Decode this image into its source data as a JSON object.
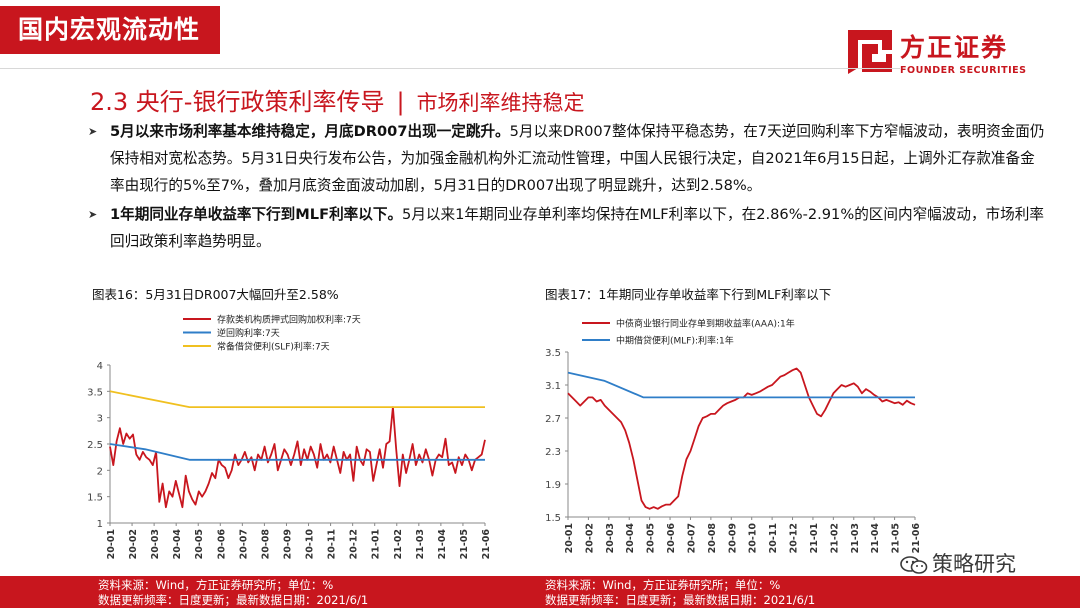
{
  "header": {
    "category_tab": "国内宏观流动性",
    "logo_cn": "方正证券",
    "logo_en": "FOUNDER SECURITIES",
    "brand_color": "#c8161e"
  },
  "section": {
    "title": "2.3 央行-银行政策利率传导",
    "separator": "|",
    "subtitle": "市场利率维持稳定"
  },
  "bullets": [
    {
      "bold": "5月以来市场利率基本维持稳定，月底DR007出现一定跳升。",
      "text": "5月以来DR007整体保持平稳态势，在7天逆回购利率下方窄幅波动，表明资金面仍保持相对宽松态势。5月31日央行发布公告，为加强金融机构外汇流动性管理，中国人民银行决定，自2021年6月15日起，上调外汇存款准备金率由现行的5%至7%，叠加月底资金面波动加剧，5月31日的DR007出现了明显跳升，达到2.58%。"
    },
    {
      "bold": "1年期同业存单收益率下行到MLF利率以下。",
      "text": "5月以来1年期同业存单利率均保持在MLF利率以下，在2.86%-2.91%的区间内窄幅波动，市场利率回归政策利率趋势明显。"
    }
  ],
  "chart_data": [
    {
      "type": "line",
      "caption": "图表16：5月31日DR007大幅回升至2.58%",
      "ylim": [
        1,
        4
      ],
      "yticks": [
        "1",
        "1.5",
        "2",
        "2.5",
        "3",
        "3.5",
        "4"
      ],
      "xticks": [
        "20-01",
        "20-02",
        "20-03",
        "20-04",
        "20-05",
        "20-06",
        "20-07",
        "20-08",
        "20-09",
        "20-10",
        "20-11",
        "20-12",
        "21-01",
        "21-02",
        "21-03",
        "21-04",
        "21-05",
        "21-06"
      ],
      "series": [
        {
          "name": "存款类机构质押式回购加权利率:7天",
          "color": "#c8161e",
          "values": [
            2.45,
            2.1,
            2.55,
            2.8,
            2.5,
            2.7,
            2.6,
            2.68,
            2.3,
            2.2,
            2.35,
            2.25,
            2.2,
            2.1,
            2.35,
            1.4,
            1.75,
            1.3,
            1.6,
            1.5,
            1.8,
            1.55,
            1.3,
            1.9,
            1.6,
            1.45,
            1.35,
            1.6,
            1.5,
            1.6,
            1.75,
            1.95,
            1.85,
            2.2,
            2.1,
            2.05,
            1.85,
            2.0,
            2.3,
            2.1,
            2.2,
            2.35,
            2.15,
            2.25,
            2.0,
            2.3,
            2.2,
            2.45,
            2.15,
            2.3,
            2.5,
            2.0,
            2.2,
            2.4,
            2.3,
            2.1,
            2.3,
            2.55,
            2.1,
            2.4,
            2.2,
            2.45,
            2.3,
            2.05,
            2.5,
            2.2,
            2.3,
            2.15,
            2.45,
            2.2,
            1.95,
            2.35,
            2.2,
            2.3,
            1.8,
            2.45,
            2.2,
            2.1,
            2.4,
            2.35,
            1.8,
            2.1,
            2.4,
            2.05,
            2.5,
            2.55,
            3.2,
            2.4,
            1.7,
            2.3,
            1.95,
            2.2,
            2.5,
            2.1,
            2.3,
            2.15,
            2.4,
            2.2,
            1.9,
            2.2,
            2.3,
            2.25,
            2.6,
            2.1,
            2.15,
            1.95,
            2.25,
            2.1,
            2.3,
            2.2,
            2.0,
            2.2,
            2.25,
            2.3,
            2.58
          ]
        },
        {
          "name": "逆回购利率:7天",
          "color": "#2f7ec8",
          "points": [
            [
              0,
              2.5
            ],
            [
              1.6,
              2.4
            ],
            [
              3.6,
              2.2
            ],
            [
              17,
              2.2
            ]
          ]
        },
        {
          "name": "常备借贷便利(SLF)利率:7天",
          "color": "#f0c020",
          "points": [
            [
              0,
              3.5
            ],
            [
              3.6,
              3.2
            ],
            [
              17,
              3.2
            ]
          ]
        }
      ]
    },
    {
      "type": "line",
      "caption": "图表17：1年期同业存单收益率下行到MLF利率以下",
      "ylim": [
        1.5,
        3.5
      ],
      "yticks": [
        "1.5",
        "1.9",
        "2.3",
        "2.7",
        "3.1",
        "3.5"
      ],
      "xticks": [
        "20-01",
        "20-02",
        "20-03",
        "20-04",
        "20-05",
        "20-06",
        "20-07",
        "20-08",
        "20-09",
        "20-10",
        "20-11",
        "20-12",
        "21-01",
        "21-02",
        "21-03",
        "21-04",
        "21-05",
        "21-06"
      ],
      "series": [
        {
          "name": "中债商业银行同业存单到期收益率(AAA):1年",
          "color": "#c8161e",
          "values": [
            3.0,
            2.95,
            2.9,
            2.85,
            2.9,
            2.95,
            2.95,
            2.9,
            2.92,
            2.85,
            2.8,
            2.75,
            2.7,
            2.65,
            2.55,
            2.4,
            2.2,
            1.95,
            1.7,
            1.62,
            1.6,
            1.62,
            1.6,
            1.63,
            1.65,
            1.65,
            1.7,
            1.75,
            2.0,
            2.2,
            2.3,
            2.45,
            2.6,
            2.7,
            2.72,
            2.75,
            2.75,
            2.8,
            2.85,
            2.88,
            2.9,
            2.92,
            2.95,
            2.95,
            3.0,
            2.98,
            3.0,
            3.02,
            3.05,
            3.08,
            3.1,
            3.15,
            3.2,
            3.22,
            3.25,
            3.28,
            3.3,
            3.25,
            3.1,
            2.95,
            2.85,
            2.75,
            2.72,
            2.8,
            2.9,
            3.0,
            3.05,
            3.1,
            3.08,
            3.1,
            3.12,
            3.08,
            3.0,
            3.05,
            3.02,
            2.98,
            2.95,
            2.9,
            2.92,
            2.9,
            2.88,
            2.89,
            2.86,
            2.91,
            2.88,
            2.86
          ]
        },
        {
          "name": "中期借贷便利(MLF):利率:1年",
          "color": "#2f7ec8",
          "points": [
            [
              0,
              3.25
            ],
            [
              1.8,
              3.15
            ],
            [
              3.7,
              2.95
            ],
            [
              17,
              2.95
            ]
          ]
        }
      ]
    }
  ],
  "sources": [
    {
      "line1": "资料来源：Wind，方正证券研究所；单位：%",
      "line2": "数据更新频率：日度更新；最新数据日期：2021/6/1"
    },
    {
      "line1": "资料来源：Wind，方正证券研究所；单位：%",
      "line2": "数据更新频率：日度更新；最新数据日期：2021/6/1"
    }
  ],
  "watermark": "策略研究"
}
